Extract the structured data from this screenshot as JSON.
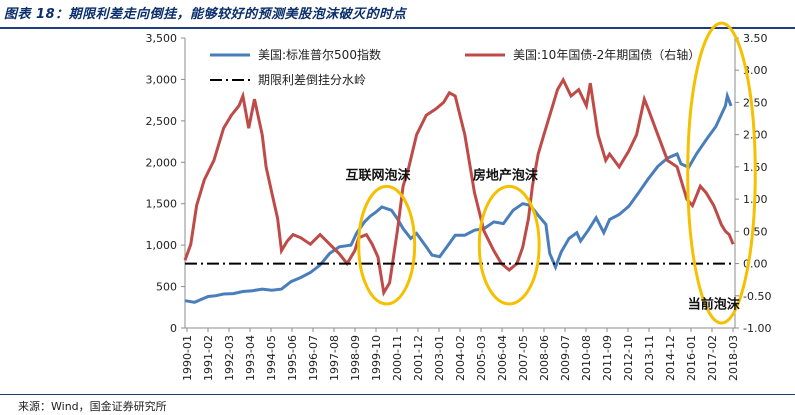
{
  "figure": {
    "title": "图表 18：期限利差走向倒挂，能够较好的预测美股泡沫破灭的时点",
    "source": "来源：Wind，国金证券研究所"
  },
  "colors": {
    "sp500": "#4a7ebb",
    "spread": "#be4b48",
    "zero_line": "#000000",
    "ellipse": "#f5c000",
    "title": "#0b2f6b"
  },
  "chart_data": {
    "type": "line",
    "title": "",
    "legend": [
      {
        "label": "美国:标准普尔500指数",
        "color": "#4a7ebb",
        "style": "solid"
      },
      {
        "label": "美国:10年国债-2年期国债（右轴）",
        "color": "#be4b48",
        "style": "solid"
      },
      {
        "label": "期限利差倒挂分水岭",
        "color": "#000000",
        "style": "dashdot"
      }
    ],
    "x_ticks": [
      "1990-01",
      "1991-02",
      "1992-03",
      "1993-04",
      "1994-05",
      "1995-06",
      "1996-07",
      "1997-08",
      "1998-09",
      "1999-10",
      "2000-11",
      "2001-12",
      "2003-01",
      "2004-02",
      "2005-03",
      "2006-04",
      "2007-05",
      "2008-06",
      "2009-07",
      "2010-08",
      "2011-09",
      "2012-10",
      "2013-11",
      "2014-12",
      "2016-01",
      "2017-02",
      "2018-03"
    ],
    "y_left": {
      "ylim": [
        0,
        3500
      ],
      "ticks": [
        "0",
        "500",
        "1,000",
        "1,500",
        "2,000",
        "2,500",
        "3,000",
        "3,500"
      ]
    },
    "y_right": {
      "ylim": [
        -1.0,
        3.5
      ],
      "ticks": [
        "-1.00",
        "-0.50",
        "0.00",
        "0.50",
        "1.00",
        "1.50",
        "2.00",
        "2.50",
        "3.00",
        "3.50"
      ]
    },
    "series": [
      {
        "name": "美国:标准普尔500指数",
        "axis": "left",
        "x": [
          1990.0,
          1990.5,
          1990.8,
          1991.2,
          1991.6,
          1992.0,
          1992.5,
          1993.0,
          1993.5,
          1994.0,
          1994.5,
          1995.0,
          1995.5,
          1996.0,
          1996.5,
          1997.0,
          1997.5,
          1998.0,
          1998.6,
          1998.9,
          1999.3,
          1999.6,
          1999.9,
          2000.2,
          2000.7,
          2001.0,
          2001.3,
          2001.7,
          2002.0,
          2002.5,
          2002.8,
          2003.2,
          2003.6,
          2004.0,
          2004.5,
          2005.0,
          2005.5,
          2006.0,
          2006.5,
          2007.0,
          2007.5,
          2007.9,
          2008.3,
          2008.7,
          2008.9,
          2009.2,
          2009.5,
          2009.9,
          2010.3,
          2010.5,
          2010.9,
          2011.3,
          2011.7,
          2012.0,
          2012.5,
          2013.0,
          2013.5,
          2014.0,
          2014.5,
          2015.0,
          2015.5,
          2015.7,
          2016.1,
          2016.5,
          2017.0,
          2017.5,
          2018.0,
          2018.1,
          2018.3
        ],
        "values": [
          330,
          310,
          340,
          380,
          390,
          410,
          415,
          440,
          450,
          470,
          455,
          470,
          560,
          610,
          670,
          760,
          900,
          980,
          1000,
          1150,
          1280,
          1350,
          1400,
          1460,
          1420,
          1320,
          1200,
          1080,
          1140,
          980,
          880,
          860,
          990,
          1120,
          1120,
          1180,
          1200,
          1280,
          1260,
          1420,
          1500,
          1480,
          1360,
          1250,
          900,
          735,
          920,
          1080,
          1150,
          1050,
          1180,
          1330,
          1150,
          1310,
          1370,
          1470,
          1630,
          1800,
          1950,
          2050,
          2100,
          1980,
          1940,
          2100,
          2270,
          2430,
          2680,
          2800,
          2680
        ]
      },
      {
        "name": "美国:10年国债-2年期国债（右轴）",
        "axis": "right",
        "x": [
          1990.0,
          1990.3,
          1990.6,
          1991.0,
          1991.5,
          1992.0,
          1992.4,
          1992.8,
          1993.0,
          1993.3,
          1993.6,
          1994.0,
          1994.2,
          1994.5,
          1994.8,
          1995.0,
          1995.3,
          1995.6,
          1996.0,
          1996.5,
          1997.0,
          1997.5,
          1998.0,
          1998.4,
          1998.8,
          1999.0,
          1999.4,
          1999.7,
          2000.0,
          2000.3,
          2000.6,
          2001.0,
          2001.3,
          2001.6,
          2002.0,
          2002.5,
          2003.0,
          2003.4,
          2003.7,
          2004.0,
          2004.5,
          2005.0,
          2005.5,
          2006.0,
          2006.4,
          2006.8,
          2007.2,
          2007.5,
          2007.8,
          2008.0,
          2008.3,
          2008.6,
          2009.0,
          2009.3,
          2009.6,
          2010.0,
          2010.4,
          2010.8,
          2011.0,
          2011.4,
          2011.8,
          2012.0,
          2012.5,
          2013.0,
          2013.4,
          2013.8,
          2014.0,
          2014.5,
          2015.0,
          2015.5,
          2016.0,
          2016.3,
          2016.7,
          2017.0,
          2017.4,
          2017.8,
          2018.0,
          2018.2,
          2018.4
        ],
        "values": [
          0.05,
          0.3,
          0.9,
          1.3,
          1.6,
          2.1,
          2.3,
          2.45,
          2.6,
          2.1,
          2.55,
          2.0,
          1.5,
          1.1,
          0.7,
          0.2,
          0.35,
          0.45,
          0.4,
          0.3,
          0.45,
          0.3,
          0.15,
          0.0,
          0.2,
          0.4,
          0.45,
          0.3,
          0.1,
          -0.45,
          -0.3,
          0.5,
          1.2,
          1.5,
          2.0,
          2.3,
          2.4,
          2.5,
          2.65,
          2.6,
          2.0,
          1.1,
          0.5,
          0.2,
          0.0,
          -0.1,
          0.0,
          0.25,
          0.7,
          1.2,
          1.7,
          2.0,
          2.4,
          2.7,
          2.85,
          2.6,
          2.7,
          2.45,
          2.8,
          2.0,
          1.6,
          1.7,
          1.5,
          1.75,
          2.0,
          2.55,
          2.4,
          2.0,
          1.6,
          1.5,
          1.0,
          0.9,
          1.2,
          1.1,
          0.9,
          0.6,
          0.5,
          0.45,
          0.3
        ]
      },
      {
        "name": "期限利差倒挂分水岭",
        "axis": "right",
        "x": [
          1990.0,
          2018.5
        ],
        "values": [
          0.0,
          0.0
        ]
      }
    ],
    "annotations": [
      {
        "text": "互联网泡沫",
        "x": 2000.0,
        "y_left": 1790
      },
      {
        "text": "房地产泡沫",
        "x": 2006.6,
        "y_left": 1790
      },
      {
        "text": "当前泡沫",
        "x": 2017.4,
        "y_right": -0.7
      }
    ],
    "highlight_regions": [
      {
        "x_center": 2000.45,
        "x_radius": 1.45,
        "y_center_left": 1000,
        "y_radius_left": 710
      },
      {
        "x_center": 2006.8,
        "x_radius": 1.55,
        "y_center_left": 1000,
        "y_radius_left": 710
      },
      {
        "x_center": 2017.8,
        "x_radius": 1.75,
        "y_center_left": 1870,
        "y_radius_left": 1810
      }
    ]
  }
}
